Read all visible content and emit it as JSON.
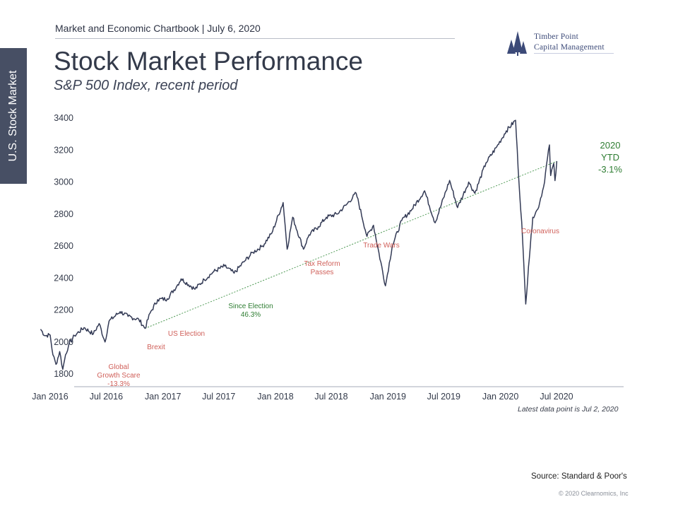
{
  "header": {
    "text": "Market and Economic Chartbook | July 6, 2020"
  },
  "logo": {
    "line1": "Timber Point",
    "line2": "Capital Management",
    "icon": "pine-trees-icon"
  },
  "side_tab": {
    "label": "U.S. Stock Market"
  },
  "title": "Stock Market Performance",
  "subtitle": "S&P 500 Index, recent period",
  "footnote": "Latest data point is Jul 2, 2020",
  "source": "Source: Standard & Poor's",
  "copyright": "© 2020 Clearnomics, Inc",
  "colors": {
    "line": "#333a55",
    "annotation_red": "#d0605a",
    "annotation_green": "#2e7d32",
    "axis": "#b8bcc6"
  },
  "chart_data": {
    "type": "line",
    "title": "Stock Market Performance",
    "subtitle": "S&P 500 Index, recent period",
    "series": [
      {
        "values": [
          [
            "2015-12-01",
            2080
          ],
          [
            "2015-12-15",
            2040
          ],
          [
            "2016-01-01",
            2044
          ],
          [
            "2016-01-10",
            1920
          ],
          [
            "2016-01-20",
            1860
          ],
          [
            "2016-02-01",
            1940
          ],
          [
            "2016-02-11",
            1829
          ],
          [
            "2016-02-20",
            1920
          ],
          [
            "2016-03-01",
            1980
          ],
          [
            "2016-03-20",
            2040
          ],
          [
            "2016-04-20",
            2090
          ],
          [
            "2016-05-20",
            2050
          ],
          [
            "2016-06-08",
            2115
          ],
          [
            "2016-06-27",
            2000
          ],
          [
            "2016-07-10",
            2130
          ],
          [
            "2016-08-15",
            2190
          ],
          [
            "2016-09-10",
            2160
          ],
          [
            "2016-10-15",
            2140
          ],
          [
            "2016-11-04",
            2085
          ],
          [
            "2016-11-20",
            2180
          ],
          [
            "2016-12-15",
            2265
          ],
          [
            "2017-01-15",
            2270
          ],
          [
            "2017-02-15",
            2350
          ],
          [
            "2017-03-01",
            2395
          ],
          [
            "2017-04-15",
            2330
          ],
          [
            "2017-05-15",
            2390
          ],
          [
            "2017-06-15",
            2440
          ],
          [
            "2017-07-20",
            2475
          ],
          [
            "2017-08-20",
            2430
          ],
          [
            "2017-09-20",
            2500
          ],
          [
            "2017-10-20",
            2560
          ],
          [
            "2017-11-20",
            2600
          ],
          [
            "2017-12-20",
            2680
          ],
          [
            "2018-01-26",
            2872
          ],
          [
            "2018-02-08",
            2580
          ],
          [
            "2018-02-26",
            2780
          ],
          [
            "2018-04-02",
            2580
          ],
          [
            "2018-04-20",
            2670
          ],
          [
            "2018-05-20",
            2720
          ],
          [
            "2018-06-15",
            2780
          ],
          [
            "2018-07-20",
            2800
          ],
          [
            "2018-08-20",
            2860
          ],
          [
            "2018-09-20",
            2930
          ],
          [
            "2018-10-25",
            2660
          ],
          [
            "2018-11-15",
            2730
          ],
          [
            "2018-12-24",
            2351
          ],
          [
            "2019-01-15",
            2600
          ],
          [
            "2019-02-15",
            2760
          ],
          [
            "2019-03-20",
            2830
          ],
          [
            "2019-04-30",
            2945
          ],
          [
            "2019-06-03",
            2745
          ],
          [
            "2019-07-20",
            3010
          ],
          [
            "2019-08-15",
            2840
          ],
          [
            "2019-09-20",
            3000
          ],
          [
            "2019-10-10",
            2930
          ],
          [
            "2019-11-15",
            3120
          ],
          [
            "2019-12-20",
            3220
          ],
          [
            "2020-01-20",
            3320
          ],
          [
            "2020-02-19",
            3386
          ],
          [
            "2020-03-01",
            3000
          ],
          [
            "2020-03-10",
            2750
          ],
          [
            "2020-03-23",
            2237
          ],
          [
            "2020-04-01",
            2470
          ],
          [
            "2020-04-15",
            2780
          ],
          [
            "2020-05-01",
            2830
          ],
          [
            "2020-05-20",
            2970
          ],
          [
            "2020-06-08",
            3232
          ],
          [
            "2020-06-12",
            3040
          ],
          [
            "2020-06-22",
            3117
          ],
          [
            "2020-06-26",
            3009
          ],
          [
            "2020-07-02",
            3130
          ]
        ]
      }
    ],
    "x_ticks": [
      "Jan 2016",
      "Jul 2016",
      "Jan 2017",
      "Jul 2017",
      "Jan 2018",
      "Jul 2018",
      "Jan 2019",
      "Jul 2019",
      "Jan 2020",
      "Jul 2020"
    ],
    "y_ticks": [
      "1800",
      "2000",
      "2200",
      "2400",
      "2600",
      "2800",
      "3000",
      "3200",
      "3400"
    ],
    "ylim": [
      1750,
      3450
    ],
    "grid": false,
    "annotations": [
      {
        "lines": [
          "Global",
          "Growth Scare",
          "-13.3%"
        ],
        "color": "red"
      },
      {
        "lines": [
          "Brexit"
        ],
        "color": "red"
      },
      {
        "lines": [
          "US Election"
        ],
        "color": "red"
      },
      {
        "lines": [
          "Since Election",
          "46.3%"
        ],
        "color": "green"
      },
      {
        "lines": [
          "Tax Reform",
          "Passes"
        ],
        "color": "red"
      },
      {
        "lines": [
          "Trade Wars"
        ],
        "color": "red"
      },
      {
        "lines": [
          "Coronavirus"
        ],
        "color": "red"
      },
      {
        "lines": [
          "2020",
          "YTD",
          "-3.1%"
        ],
        "color": "green"
      }
    ]
  }
}
